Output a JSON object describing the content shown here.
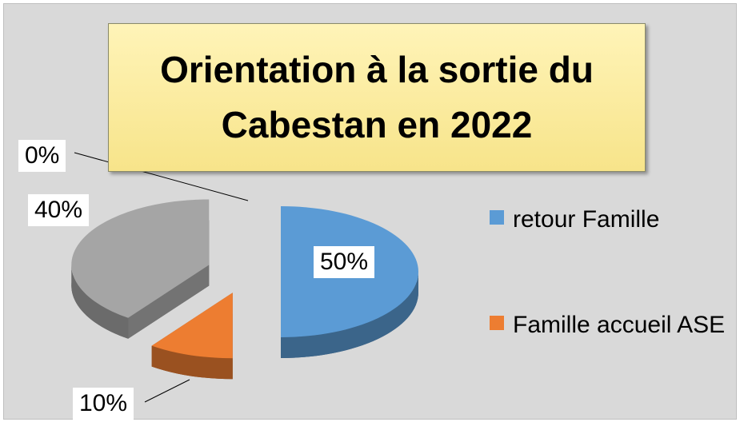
{
  "chart_data": {
    "type": "pie",
    "title": "Orientation à la sortie du Cabestan en 2022",
    "categories": [
      "retour Famille",
      "Famille accueil ASE",
      null,
      null
    ],
    "values": [
      50,
      10,
      40,
      0
    ],
    "value_labels": [
      "50%",
      "10%",
      "40%",
      "0%"
    ],
    "colors": [
      "#5b9bd5",
      "#ed7d31",
      "#a5a5a5",
      "#ffc000"
    ],
    "legend": "right"
  }
}
